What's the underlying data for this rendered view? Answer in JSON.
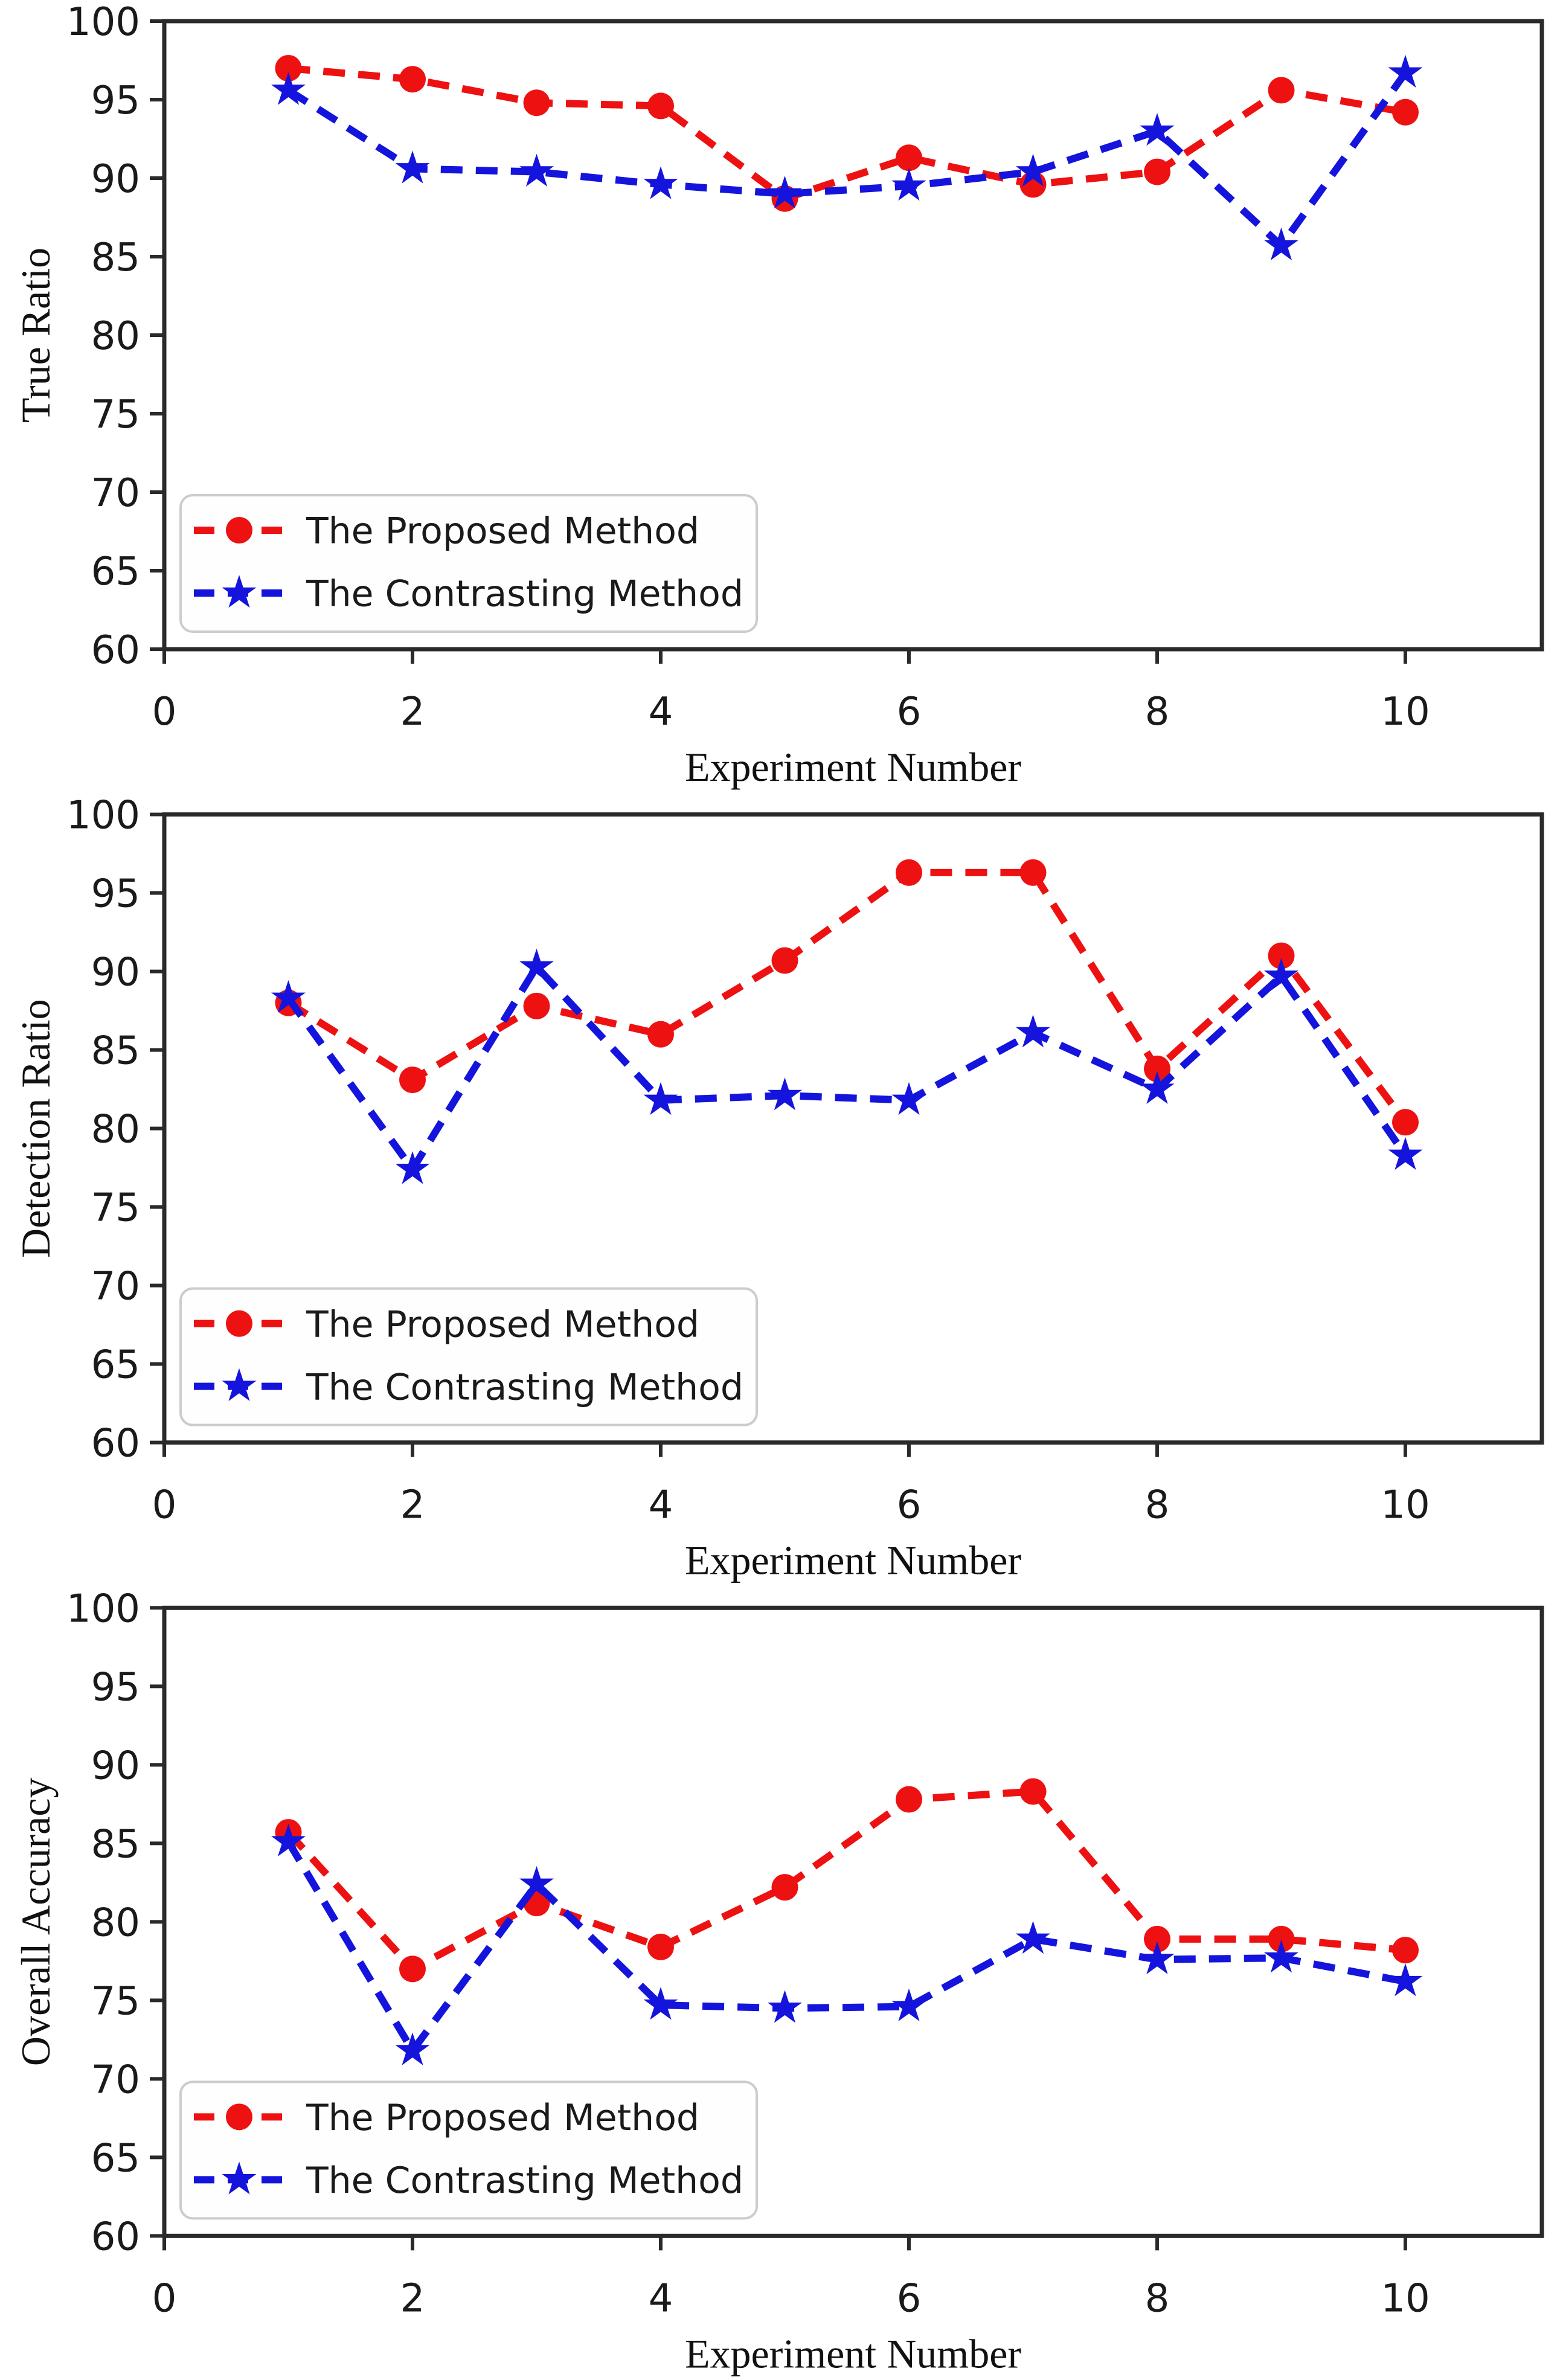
{
  "page": {
    "background": "#ffffff",
    "description_colors": {
      "proposed_red": "#ee1111",
      "contrasting_blue": "#1414dd",
      "axis_line": "#2a2a2a",
      "tick_text": "#1a1a1a",
      "legend_border": "#cccccc",
      "legend_fill": "#fefefe"
    }
  },
  "chart_data": [
    {
      "type": "line",
      "title": "",
      "xlabel": "Experiment Number",
      "ylabel": "True Ratio",
      "x": [
        1,
        2,
        3,
        4,
        5,
        6,
        7,
        8,
        9,
        10
      ],
      "xlim": [
        0,
        11.1
      ],
      "ylim": [
        60,
        100
      ],
      "xticks": [
        "0",
        "2",
        "4",
        "6",
        "8",
        "10"
      ],
      "xtick_values": [
        0,
        2,
        4,
        6,
        8,
        10
      ],
      "yticks": [
        "60",
        "65",
        "70",
        "75",
        "80",
        "85",
        "90",
        "95",
        "100"
      ],
      "ytick_values": [
        60,
        65,
        70,
        75,
        80,
        85,
        90,
        95,
        100
      ],
      "grid": false,
      "legend_position": "lower left",
      "series": [
        {
          "name": "The Proposed Method",
          "color": "#ee1111",
          "marker": "circle",
          "linestyle": "dashed",
          "values": [
            97.0,
            96.3,
            94.8,
            94.6,
            88.7,
            91.3,
            89.6,
            90.4,
            95.6,
            94.2
          ]
        },
        {
          "name": "The Contrasting Method",
          "color": "#1414dd",
          "marker": "star",
          "linestyle": "dashed",
          "values": [
            95.6,
            90.6,
            90.4,
            89.6,
            89.0,
            89.5,
            90.4,
            93.0,
            85.7,
            96.7
          ]
        }
      ]
    },
    {
      "type": "line",
      "title": "",
      "xlabel": "Experiment Number",
      "ylabel": "Detection Ratio",
      "x": [
        1,
        2,
        3,
        4,
        5,
        6,
        7,
        8,
        9,
        10
      ],
      "xlim": [
        0,
        11.1
      ],
      "ylim": [
        60,
        100
      ],
      "xticks": [
        "0",
        "2",
        "4",
        "6",
        "8",
        "10"
      ],
      "xtick_values": [
        0,
        2,
        4,
        6,
        8,
        10
      ],
      "yticks": [
        "60",
        "65",
        "70",
        "75",
        "80",
        "85",
        "90",
        "95",
        "100"
      ],
      "ytick_values": [
        60,
        65,
        70,
        75,
        80,
        85,
        90,
        95,
        100
      ],
      "grid": false,
      "legend_position": "lower left",
      "series": [
        {
          "name": "The Proposed Method",
          "color": "#ee1111",
          "marker": "circle",
          "linestyle": "dashed",
          "values": [
            88.0,
            83.1,
            87.8,
            86.0,
            90.7,
            96.3,
            96.3,
            83.8,
            91.0,
            80.4
          ]
        },
        {
          "name": "The Contrasting Method",
          "color": "#1414dd",
          "marker": "star",
          "linestyle": "dashed",
          "values": [
            88.3,
            77.4,
            90.3,
            81.8,
            82.1,
            81.8,
            86.1,
            82.5,
            89.7,
            78.3
          ]
        }
      ]
    },
    {
      "type": "line",
      "title": "",
      "xlabel": "Experiment Number",
      "ylabel": "Overall Accuracy",
      "x": [
        1,
        2,
        3,
        4,
        5,
        6,
        7,
        8,
        9,
        10
      ],
      "xlim": [
        0,
        11.1
      ],
      "ylim": [
        60,
        100
      ],
      "xticks": [
        "0",
        "2",
        "4",
        "6",
        "8",
        "10"
      ],
      "xtick_values": [
        0,
        2,
        4,
        6,
        8,
        10
      ],
      "yticks": [
        "60",
        "65",
        "70",
        "75",
        "80",
        "85",
        "90",
        "95",
        "100"
      ],
      "ytick_values": [
        60,
        65,
        70,
        75,
        80,
        85,
        90,
        95,
        100
      ],
      "grid": false,
      "legend_position": "lower left",
      "series": [
        {
          "name": "The Proposed Method",
          "color": "#ee1111",
          "marker": "circle",
          "linestyle": "dashed",
          "values": [
            85.7,
            77.0,
            81.2,
            78.4,
            82.2,
            87.8,
            88.3,
            78.9,
            78.9,
            78.2
          ]
        },
        {
          "name": "The Contrasting Method",
          "color": "#1414dd",
          "marker": "star",
          "linestyle": "dashed",
          "values": [
            85.1,
            71.8,
            82.4,
            74.7,
            74.5,
            74.6,
            78.9,
            77.6,
            77.7,
            76.2
          ]
        }
      ]
    }
  ]
}
